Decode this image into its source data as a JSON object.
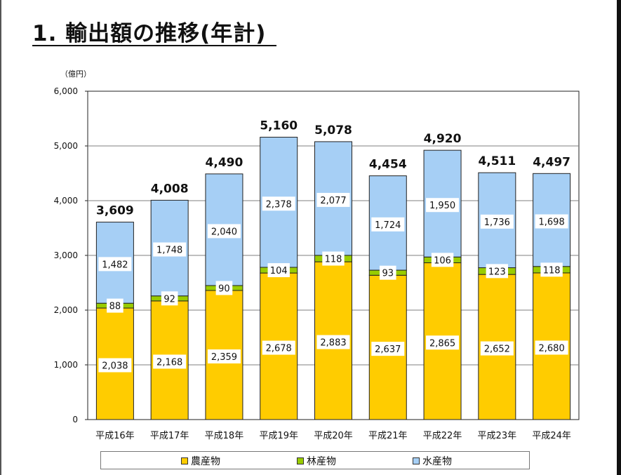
{
  "page": {
    "title": "1. 輸出額の推移(年計)"
  },
  "colors": {
    "agri": "#FFCC00",
    "forest": "#99CC00",
    "fish": "#A6CFF5",
    "outline": "#222222",
    "grid": "#7f7f7f"
  },
  "chart_data": {
    "type": "bar",
    "stacked": true,
    "unit_label": "（億円）",
    "categories": [
      "平成16年",
      "平成17年",
      "平成18年",
      "平成19年",
      "平成20年",
      "平成21年",
      "平成22年",
      "平成23年",
      "平成24年"
    ],
    "series": [
      {
        "name": "農産物",
        "color": "#FFCC00",
        "values": [
          2038,
          2168,
          2359,
          2678,
          2883,
          2637,
          2865,
          2652,
          2680
        ],
        "labels": [
          "2,038",
          "2,168",
          "2,359",
          "2,678",
          "2,883",
          "2,637",
          "2,865",
          "2,652",
          "2,680"
        ]
      },
      {
        "name": "林産物",
        "color": "#99CC00",
        "values": [
          88,
          92,
          90,
          104,
          118,
          93,
          106,
          123,
          118
        ],
        "labels": [
          "88",
          "92",
          "90",
          "104",
          "118",
          "93",
          "106",
          "123",
          "118"
        ]
      },
      {
        "name": "水産物",
        "color": "#A6CFF5",
        "values": [
          1482,
          1748,
          2040,
          2378,
          2077,
          1724,
          1950,
          1736,
          1698
        ],
        "labels": [
          "1,482",
          "1,748",
          "2,040",
          "2,378",
          "2,077",
          "1,724",
          "1,950",
          "1,736",
          "1,698"
        ]
      }
    ],
    "totals": [
      3609,
      4008,
      4490,
      5160,
      5078,
      4454,
      4920,
      4511,
      4497
    ],
    "total_labels": [
      "3,609",
      "4,008",
      "4,490",
      "5,160",
      "5,078",
      "4,454",
      "4,920",
      "4,511",
      "4,497"
    ],
    "ylim": [
      0,
      6000
    ],
    "yticks": [
      0,
      1000,
      2000,
      3000,
      4000,
      5000,
      6000
    ],
    "ytick_labels": [
      "0",
      "1,000",
      "2,000",
      "3,000",
      "4,000",
      "5,000",
      "6,000"
    ],
    "grid": true,
    "legend_position": "bottom"
  }
}
